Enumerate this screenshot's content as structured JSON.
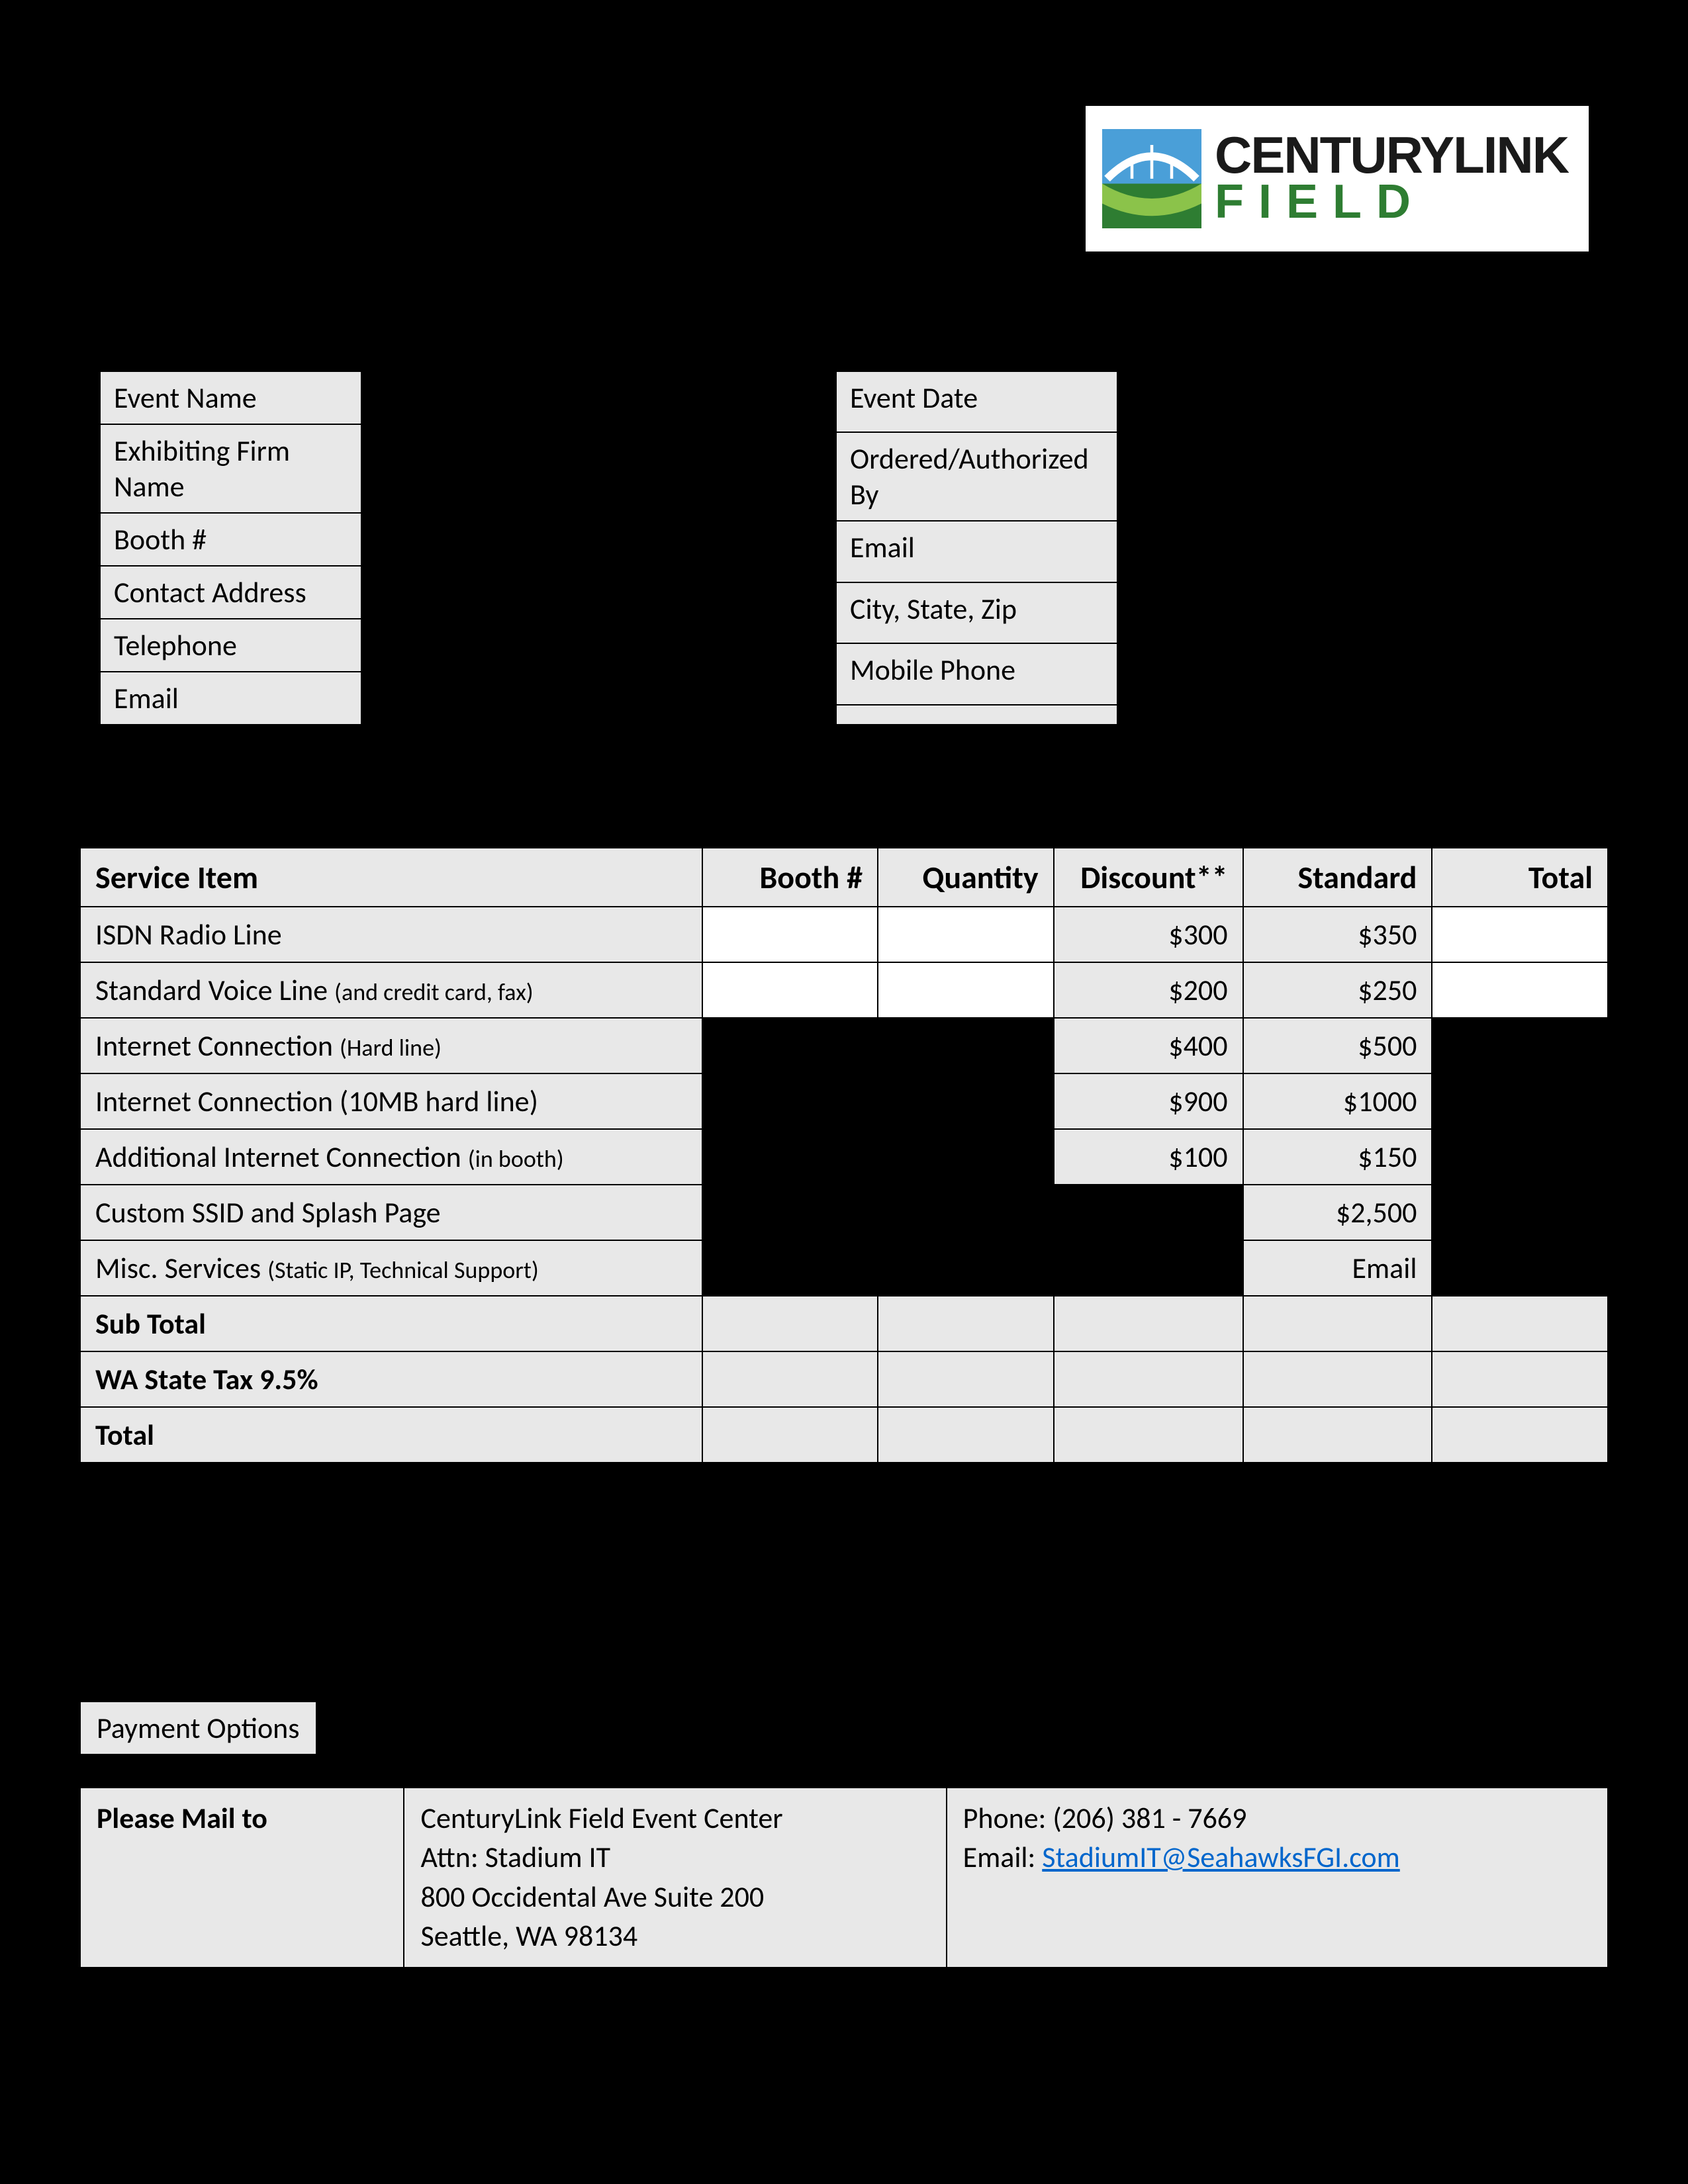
{
  "logo": {
    "text_top": "CENTURYLINK",
    "text_bottom": "FIELD",
    "icon_colors": {
      "sky": "#4a9fd8",
      "arch": "#ffffff",
      "field_dark": "#2e7d32",
      "field_light": "#8bc34a"
    }
  },
  "info_left": {
    "r1": "Event Name",
    "r2": "Exhibiting Firm Name",
    "r3": "Booth #",
    "r4": "Contact Address",
    "r5": "Telephone",
    "r6": "Email"
  },
  "info_right": {
    "r1": "Event Date",
    "r2": "Ordered/Authorized By",
    "r3": "Email",
    "r4": "City, State, Zip",
    "r5": "Mobile Phone",
    "r6": ""
  },
  "service": {
    "headers": {
      "item": "Service Item",
      "booth": "Booth #",
      "qty": "Quantity",
      "disc": "Discount**",
      "std": "Standard",
      "total": "Total"
    },
    "rows": [
      {
        "item": "ISDN Radio Line",
        "item_note": "",
        "disc": "$300",
        "std": "$350",
        "booth_white": true,
        "qty_white": true,
        "total_white": true
      },
      {
        "item": "Standard Voice Line ",
        "item_note": "(and credit card, fax)",
        "disc": "$200",
        "std": "$250",
        "booth_white": true,
        "qty_white": true,
        "total_white": true
      },
      {
        "item": "Internet Connection ",
        "item_note": "(Hard line)",
        "disc": "$400",
        "std": "$500",
        "booth_black": true,
        "qty_black": true,
        "total_black": true
      },
      {
        "item": "Internet Connection (10MB hard line)",
        "item_note": "",
        "disc": "$900",
        "std": "$1000",
        "booth_black": true,
        "qty_black": true,
        "total_black": true
      },
      {
        "item": "Additional Internet Connection ",
        "item_note": "(in booth)",
        "disc": "$100",
        "std": "$150",
        "booth_black": true,
        "qty_black": true,
        "total_black": true
      },
      {
        "item": "Custom SSID and Splash Page",
        "item_note": "",
        "disc": "",
        "std": "$2,500",
        "booth_black": true,
        "qty_black": true,
        "disc_black": true,
        "total_black": true
      },
      {
        "item": "Misc. Services ",
        "item_note": "(Static IP, Technical Support)",
        "disc": "",
        "std": "Email",
        "booth_black": true,
        "qty_black": true,
        "disc_black": true,
        "total_black": true
      }
    ],
    "footers": {
      "subtotal": "Sub Total",
      "tax": "WA State Tax 9.5%",
      "total": "Total"
    }
  },
  "payment_options": "Payment Options",
  "contact": {
    "label": "Please Mail to",
    "address_l1": "CenturyLink Field Event Center",
    "address_l2": "Attn: Stadium IT",
    "address_l3": "800 Occidental Ave Suite 200",
    "address_l4": "Seattle, WA 98134",
    "phone": "Phone: (206) 381 - 7669",
    "email_label": "Email: ",
    "email": "StadiumIT@SeahawksFGI.com"
  }
}
